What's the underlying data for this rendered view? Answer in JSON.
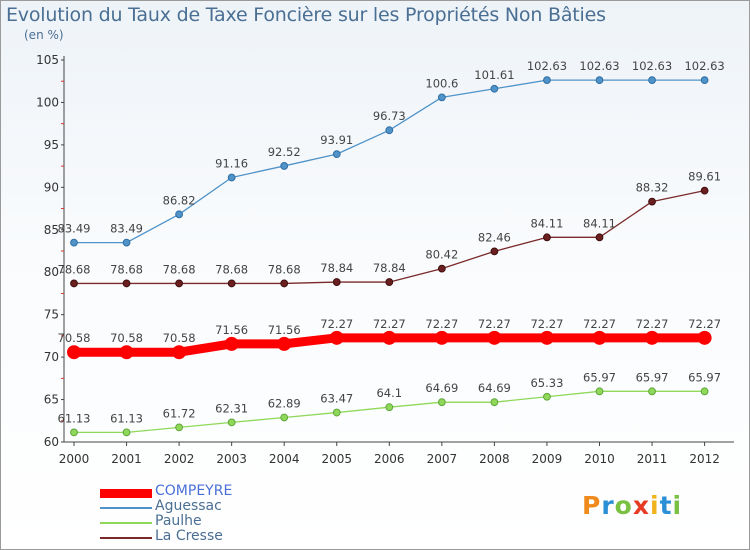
{
  "title": "Evolution du Taux de Taxe Foncière sur les Propriétés Non Bâties",
  "subtitle": "(en %)",
  "logo": {
    "letters": [
      "P",
      "r",
      "o",
      "x",
      "i",
      "t",
      "i"
    ],
    "colors": [
      "#f08a1c",
      "#2b8fd6",
      "#7ac143",
      "#e63c26",
      "#f0b41c",
      "#2b8fd6",
      "#7ac143"
    ]
  },
  "chart_data": {
    "type": "line",
    "title": "Evolution du Taux de Taxe Foncière sur les Propriétés Non Bâties",
    "ylabel": "(en %)",
    "xlabel": "",
    "x": [
      "2000",
      "2001",
      "2002",
      "2003",
      "2004",
      "2005",
      "2006",
      "2007",
      "2008",
      "2009",
      "2010",
      "2011",
      "2012"
    ],
    "ylim": [
      60,
      105
    ],
    "yticks": [
      60,
      65,
      70,
      75,
      80,
      85,
      90,
      95,
      100,
      105
    ],
    "grid": false,
    "legend_position": "bottom-left",
    "series": [
      {
        "name": "COMPEYRE",
        "color": "#ff0000",
        "values": [
          70.58,
          70.58,
          70.58,
          71.56,
          71.56,
          72.27,
          72.27,
          72.27,
          72.27,
          72.27,
          72.27,
          72.27,
          72.27
        ],
        "labels": [
          "70.58",
          "70.58",
          "70.58",
          "71.56",
          "71.56",
          "72.27",
          "72.27",
          "72.27",
          "72.27",
          "72.27",
          "72.27",
          "72.27",
          "72.27"
        ]
      },
      {
        "name": "Aguessac",
        "color": "#4f93c9",
        "values": [
          83.49,
          83.49,
          86.82,
          91.16,
          92.52,
          93.91,
          96.73,
          100.6,
          101.61,
          102.63,
          102.63,
          102.63,
          102.63
        ],
        "labels": [
          "83.49",
          "83.49",
          "86.82",
          "91.16",
          "92.52",
          "93.91",
          "96.73",
          "100.6",
          "101.61",
          "102.63",
          "102.63",
          "102.63",
          "102.63"
        ]
      },
      {
        "name": "Paulhe",
        "color": "#8fd85a",
        "values": [
          61.13,
          61.13,
          61.72,
          62.31,
          62.89,
          63.47,
          64.1,
          64.69,
          64.69,
          65.33,
          65.97,
          65.97,
          65.97
        ],
        "labels": [
          "61.13",
          "61.13",
          "61.72",
          "62.31",
          "62.89",
          "63.47",
          "64.1",
          "64.69",
          "64.69",
          "65.33",
          "65.97",
          "65.97",
          "65.97"
        ]
      },
      {
        "name": "La Cresse",
        "color": "#7a2a2a",
        "values": [
          78.68,
          78.68,
          78.68,
          78.68,
          78.68,
          78.84,
          78.84,
          80.42,
          82.46,
          84.11,
          84.11,
          88.32,
          89.61
        ],
        "labels": [
          "78.68",
          "78.68",
          "78.68",
          "78.68",
          "78.68",
          "78.84",
          "78.84",
          "80.42",
          "82.46",
          "84.11",
          "84.11",
          "88.32",
          "89.61"
        ]
      }
    ]
  }
}
